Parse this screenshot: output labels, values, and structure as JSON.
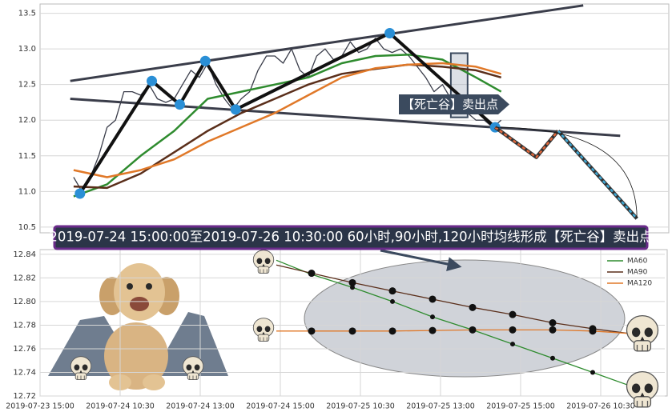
{
  "chart_data": [
    {
      "type": "line",
      "xlim": [
        0,
        75
      ],
      "ylim": [
        10.42,
        13.63
      ],
      "yticks": [
        10.5,
        {
          "value": 11,
          "label": "11.0"
        },
        11.5,
        {
          "value": 12,
          "label": "12.0"
        },
        12.5,
        {
          "value": 13,
          "label": "13.0"
        },
        13.5
      ],
      "grid": true,
      "series": [
        {
          "color": "#3a3d4a",
          "x": [
            4,
            5,
            6,
            7,
            8,
            9,
            10,
            11,
            12,
            13,
            14,
            15,
            16,
            17,
            18,
            19,
            20,
            21,
            22,
            23,
            24,
            25,
            26,
            27,
            28,
            29,
            30,
            31,
            32,
            33,
            34,
            35,
            36,
            37,
            38,
            39,
            40,
            41,
            42,
            43,
            44,
            45,
            46,
            47,
            48,
            49,
            50,
            51,
            52,
            53,
            54,
            55
          ],
          "values": [
            11.2,
            11.0,
            11.2,
            11.5,
            11.9,
            12.0,
            12.4,
            12.4,
            12.35,
            12.5,
            12.3,
            12.25,
            12.3,
            12.5,
            12.7,
            12.6,
            12.8,
            12.5,
            12.3,
            12.15,
            12.3,
            12.4,
            12.7,
            12.9,
            12.9,
            12.8,
            13.0,
            12.7,
            12.6,
            12.9,
            13.0,
            12.85,
            12.9,
            13.1,
            12.95,
            13.0,
            13.15,
            13.0,
            12.95,
            13.0,
            12.9,
            12.75,
            12.6,
            12.4,
            12.5,
            12.3,
            12.2,
            12.1,
            12.0,
            12.0,
            11.9,
            12.0
          ]
        },
        {
          "color": "#2e8b2e",
          "x": [
            4,
            8,
            12,
            16,
            20,
            24,
            28,
            32,
            36,
            40,
            44,
            48,
            52,
            55
          ],
          "values": [
            10.93,
            11.1,
            11.5,
            11.85,
            12.3,
            12.4,
            12.5,
            12.6,
            12.8,
            12.9,
            12.92,
            12.85,
            12.6,
            12.4
          ]
        },
        {
          "color": "#5a2e1a",
          "x": [
            4,
            8,
            12,
            16,
            20,
            24,
            28,
            32,
            36,
            40,
            44,
            48,
            52,
            55
          ],
          "values": [
            11.07,
            11.05,
            11.25,
            11.55,
            11.85,
            12.1,
            12.3,
            12.5,
            12.65,
            12.72,
            12.78,
            12.75,
            12.7,
            12.6
          ]
        },
        {
          "color": "#e07828",
          "x": [
            4,
            8,
            12,
            16,
            20,
            24,
            28,
            32,
            36,
            40,
            44,
            48,
            52,
            55
          ],
          "values": [
            11.3,
            11.2,
            11.3,
            11.45,
            11.7,
            11.9,
            12.1,
            12.35,
            12.6,
            12.73,
            12.78,
            12.8,
            12.75,
            12.65
          ]
        }
      ],
      "trendlines": [
        {
          "color": "#3a3d4a",
          "x": [
            3.6,
            64.8
          ],
          "values": [
            12.55,
            13.61
          ]
        },
        {
          "color": "#3a3d4a",
          "x": [
            3.6,
            69.2
          ],
          "values": [
            12.3,
            11.78
          ]
        }
      ],
      "pivots": {
        "color": "#2a8fd6",
        "x": [
          4.76,
          13.33,
          16.67,
          19.71,
          23.33,
          41.71,
          54.29
        ],
        "values": [
          10.97,
          12.55,
          12.22,
          12.83,
          12.15,
          13.22,
          11.9
        ]
      },
      "projection": [
        {
          "color": "#e0663a",
          "x": [
            54.29,
            59.2,
            61.8
          ],
          "values": [
            11.9,
            11.48,
            11.85
          ]
        },
        {
          "color": "#3fa9d6",
          "x": [
            61.8,
            71.2
          ],
          "values": [
            11.85,
            10.62
          ]
        }
      ],
      "highlight": {
        "x": [
          49,
          51
        ],
        "values": [
          12.94,
          12.04
        ]
      },
      "signal_label": "【死亡谷】卖出点",
      "banner": "2019-07-24 15:00:00至2019-07-26 10:30:00 60小时,90小时,120小时均线形成【死亡谷】卖出点"
    },
    {
      "type": "line",
      "xlim": [
        0,
        7.8
      ],
      "ylim": [
        12.72,
        12.844
      ],
      "xticks": [
        {
          "value": 0,
          "label": "2019-07-23 15:00"
        },
        {
          "value": 1,
          "label": "2019-07-24 10:30"
        },
        {
          "value": 2,
          "label": "2019-07-24 13:00"
        },
        {
          "value": 3,
          "label": "2019-07-24 15:00"
        },
        {
          "value": 4,
          "label": "2019-07-25 10:30"
        },
        {
          "value": 5,
          "label": "2019-07-25 13:00"
        },
        {
          "value": 6,
          "label": "2019-07-25 15:00"
        },
        {
          "value": 7,
          "label": "2019-07-26 10:30"
        }
      ],
      "yticks": [
        12.72,
        12.74,
        12.76,
        12.78,
        {
          "value": 12.8,
          "label": "12.80"
        },
        12.82,
        12.84
      ],
      "grid": true,
      "legend": "upper right",
      "series": [
        {
          "name": "MA60",
          "color": "#2e8b2e",
          "x": [
            2.95,
            3.39,
            3.9,
            4.4,
            4.9,
            5.4,
            5.9,
            6.4,
            6.9,
            7.35
          ],
          "values": [
            12.835,
            12.823,
            12.812,
            12.8,
            12.787,
            12.776,
            12.764,
            12.752,
            12.74,
            12.729
          ]
        },
        {
          "name": "MA90",
          "color": "#5a2e1a",
          "x": [
            2.95,
            3.39,
            3.9,
            4.4,
            4.9,
            5.4,
            5.9,
            6.4,
            6.9,
            7.35
          ],
          "values": [
            12.831,
            12.824,
            12.816,
            12.809,
            12.802,
            12.795,
            12.789,
            12.782,
            12.777,
            12.773
          ]
        },
        {
          "name": "MA120",
          "color": "#e07828",
          "x": [
            2.95,
            3.39,
            3.9,
            4.4,
            4.9,
            5.4,
            5.9,
            6.4,
            6.9,
            7.35
          ],
          "values": [
            12.775,
            12.775,
            12.775,
            12.775,
            12.7755,
            12.776,
            12.776,
            12.776,
            12.775,
            12.773
          ]
        }
      ]
    }
  ]
}
